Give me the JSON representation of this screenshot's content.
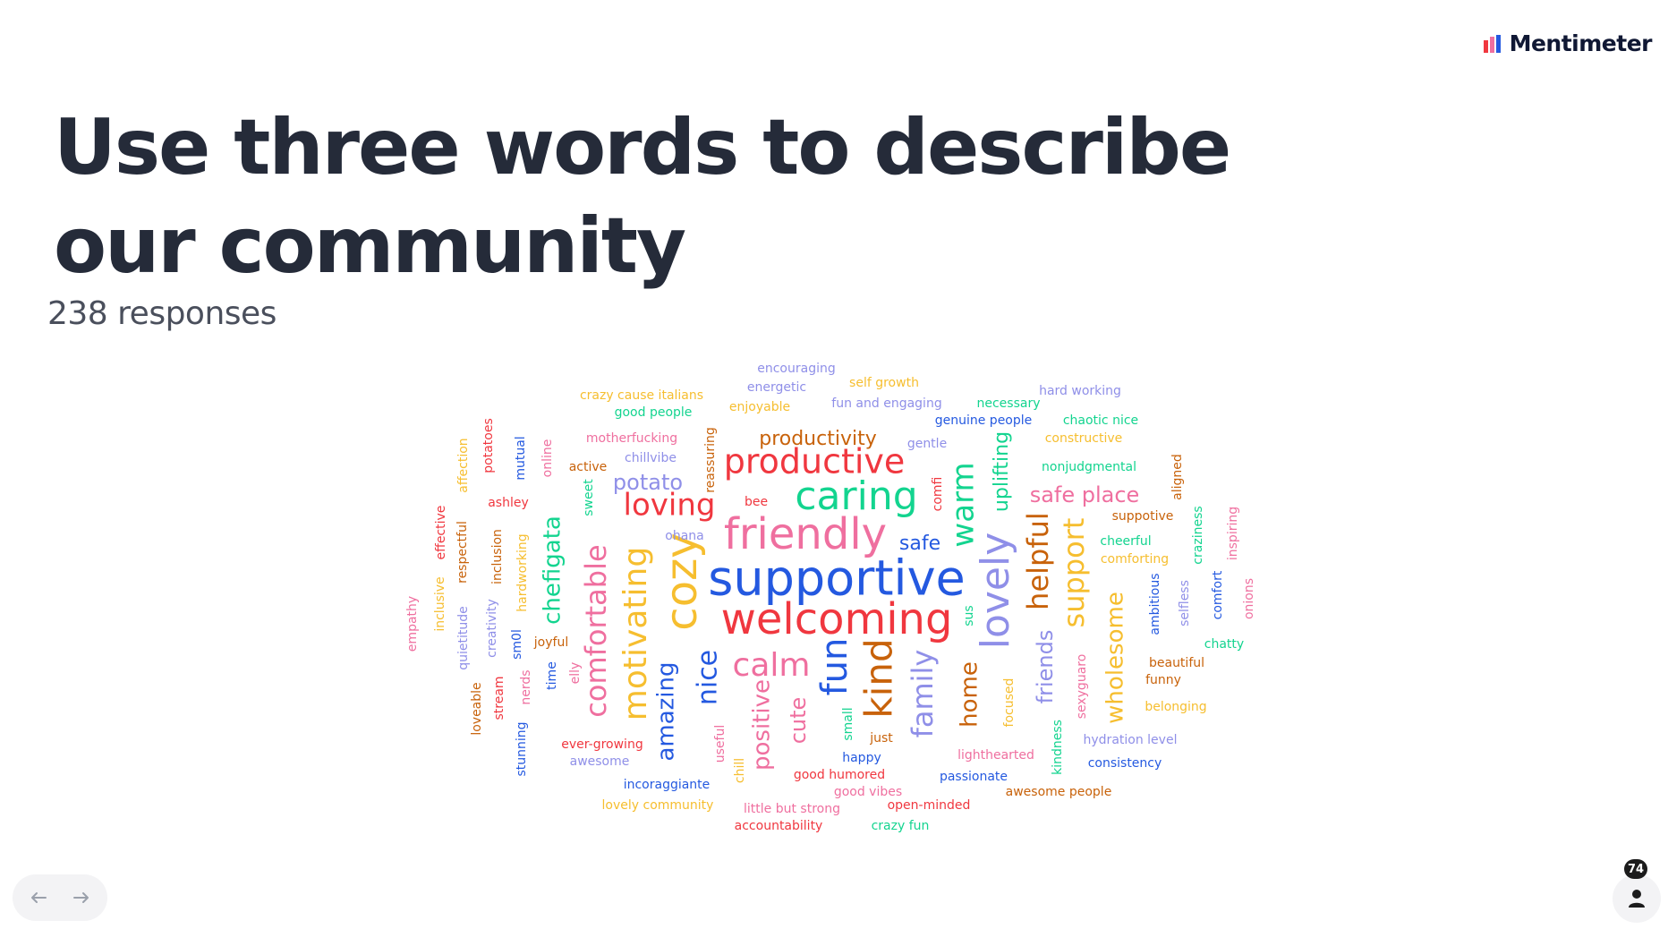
{
  "brand": {
    "name": "Mentimeter"
  },
  "question": {
    "title": "Use three words to describe our community"
  },
  "responses": {
    "count_label": "238 responses"
  },
  "colors": {
    "blue": "#2459e0",
    "red": "#f0373f",
    "pink": "#ef6f9f",
    "yellow": "#f6be2f",
    "green": "#13d48f",
    "lavender": "#8f8fe8",
    "orange": "#c8620a"
  },
  "word_cloud": {
    "words": [
      {
        "text": "supportive",
        "color": "blue",
        "weight": 1.0
      },
      {
        "text": "welcoming",
        "color": "red",
        "weight": 0.9
      },
      {
        "text": "friendly",
        "color": "pink",
        "weight": 0.85
      },
      {
        "text": "cozy",
        "color": "yellow",
        "weight": 0.83
      },
      {
        "text": "caring",
        "color": "green",
        "weight": 0.8
      },
      {
        "text": "productive",
        "color": "red",
        "weight": 0.75
      },
      {
        "text": "lovely",
        "color": "lavender",
        "weight": 0.74
      },
      {
        "text": "kind",
        "color": "orange",
        "weight": 0.73
      },
      {
        "text": "fun",
        "color": "blue",
        "weight": 0.72
      },
      {
        "text": "motivating",
        "color": "yellow",
        "weight": 0.7
      },
      {
        "text": "comfortable",
        "color": "pink",
        "weight": 0.68
      },
      {
        "text": "calm",
        "color": "pink",
        "weight": 0.68
      },
      {
        "text": "warm",
        "color": "green",
        "weight": 0.66
      },
      {
        "text": "helpful",
        "color": "orange",
        "weight": 0.65
      },
      {
        "text": "support",
        "color": "yellow",
        "weight": 0.62
      },
      {
        "text": "loving",
        "color": "red",
        "weight": 0.6
      },
      {
        "text": "family",
        "color": "lavender",
        "weight": 0.6
      },
      {
        "text": "nice",
        "color": "blue",
        "weight": 0.58
      },
      {
        "text": "wholesome",
        "color": "yellow",
        "weight": 0.52
      },
      {
        "text": "amazing",
        "color": "blue",
        "weight": 0.5
      },
      {
        "text": "chefigata",
        "color": "green",
        "weight": 0.5
      },
      {
        "text": "positive",
        "color": "pink",
        "weight": 0.48
      },
      {
        "text": "home",
        "color": "orange",
        "weight": 0.46
      },
      {
        "text": "friends",
        "color": "lavender",
        "weight": 0.44
      },
      {
        "text": "cute",
        "color": "pink",
        "weight": 0.44
      },
      {
        "text": "uplifting",
        "color": "green",
        "weight": 0.4
      },
      {
        "text": "safe place",
        "color": "pink",
        "weight": 0.4
      },
      {
        "text": "potato",
        "color": "lavender",
        "weight": 0.4
      },
      {
        "text": "productivity",
        "color": "orange",
        "weight": 0.38
      },
      {
        "text": "safe",
        "color": "blue",
        "weight": 0.38
      },
      {
        "text": "encouraging",
        "color": "lavender",
        "weight": 0.2
      },
      {
        "text": "energetic",
        "color": "lavender",
        "weight": 0.2
      },
      {
        "text": "self growth",
        "color": "yellow",
        "weight": 0.2
      },
      {
        "text": "crazy cause italians",
        "color": "yellow",
        "weight": 0.2
      },
      {
        "text": "hard working",
        "color": "lavender",
        "weight": 0.2
      },
      {
        "text": "fun and engaging",
        "color": "lavender",
        "weight": 0.2
      },
      {
        "text": "necessary",
        "color": "green",
        "weight": 0.2
      },
      {
        "text": "good people",
        "color": "green",
        "weight": 0.2
      },
      {
        "text": "enjoyable",
        "color": "yellow",
        "weight": 0.2
      },
      {
        "text": "genuine people",
        "color": "blue",
        "weight": 0.2
      },
      {
        "text": "chaotic nice",
        "color": "green",
        "weight": 0.2
      },
      {
        "text": "constructive",
        "color": "yellow",
        "weight": 0.2
      },
      {
        "text": "motherfucking",
        "color": "pink",
        "weight": 0.2
      },
      {
        "text": "gentle",
        "color": "lavender",
        "weight": 0.2
      },
      {
        "text": "chillvibe",
        "color": "lavender",
        "weight": 0.2
      },
      {
        "text": "nonjudgmental",
        "color": "green",
        "weight": 0.2
      },
      {
        "text": "active",
        "color": "orange",
        "weight": 0.2
      },
      {
        "text": "bee",
        "color": "red",
        "weight": 0.2
      },
      {
        "text": "ashley",
        "color": "red",
        "weight": 0.2
      },
      {
        "text": "suppotive",
        "color": "orange",
        "weight": 0.2
      },
      {
        "text": "ohana",
        "color": "lavender",
        "weight": 0.2
      },
      {
        "text": "cheerful",
        "color": "green",
        "weight": 0.2
      },
      {
        "text": "comforting",
        "color": "yellow",
        "weight": 0.2
      },
      {
        "text": "joyful",
        "color": "orange",
        "weight": 0.2
      },
      {
        "text": "chatty",
        "color": "green",
        "weight": 0.2
      },
      {
        "text": "beautiful",
        "color": "orange",
        "weight": 0.2
      },
      {
        "text": "funny",
        "color": "orange",
        "weight": 0.2
      },
      {
        "text": "belonging",
        "color": "yellow",
        "weight": 0.2
      },
      {
        "text": "just",
        "color": "orange",
        "weight": 0.2
      },
      {
        "text": "happy",
        "color": "blue",
        "weight": 0.2
      },
      {
        "text": "ever-growing",
        "color": "red",
        "weight": 0.2
      },
      {
        "text": "awesome",
        "color": "lavender",
        "weight": 0.2
      },
      {
        "text": "lighthearted",
        "color": "pink",
        "weight": 0.2
      },
      {
        "text": "hydration level",
        "color": "lavender",
        "weight": 0.2
      },
      {
        "text": "good humored",
        "color": "red",
        "weight": 0.2
      },
      {
        "text": "consistency",
        "color": "blue",
        "weight": 0.2
      },
      {
        "text": "passionate",
        "color": "blue",
        "weight": 0.2
      },
      {
        "text": "incoraggiante",
        "color": "blue",
        "weight": 0.2
      },
      {
        "text": "good vibes",
        "color": "pink",
        "weight": 0.2
      },
      {
        "text": "awesome people",
        "color": "orange",
        "weight": 0.2
      },
      {
        "text": "lovely community",
        "color": "yellow",
        "weight": 0.2
      },
      {
        "text": "little but strong",
        "color": "pink",
        "weight": 0.2
      },
      {
        "text": "open-minded",
        "color": "red",
        "weight": 0.2
      },
      {
        "text": "accountability",
        "color": "red",
        "weight": 0.2
      },
      {
        "text": "crazy fun",
        "color": "green",
        "weight": 0.2
      },
      {
        "text": "affection",
        "color": "yellow",
        "weight": 0.2
      },
      {
        "text": "potatoes",
        "color": "red",
        "weight": 0.2
      },
      {
        "text": "mutual",
        "color": "blue",
        "weight": 0.2
      },
      {
        "text": "online",
        "color": "pink",
        "weight": 0.2
      },
      {
        "text": "reassuring",
        "color": "orange",
        "weight": 0.2
      },
      {
        "text": "aligned",
        "color": "orange",
        "weight": 0.2
      },
      {
        "text": "sweet",
        "color": "green",
        "weight": 0.2
      },
      {
        "text": "comfi",
        "color": "red",
        "weight": 0.2
      },
      {
        "text": "craziness",
        "color": "green",
        "weight": 0.2
      },
      {
        "text": "inspiring",
        "color": "pink",
        "weight": 0.2
      },
      {
        "text": "effective",
        "color": "red",
        "weight": 0.2
      },
      {
        "text": "respectful",
        "color": "orange",
        "weight": 0.2
      },
      {
        "text": "inclusion",
        "color": "orange",
        "weight": 0.2
      },
      {
        "text": "hardworking",
        "color": "yellow",
        "weight": 0.2
      },
      {
        "text": "ambitious",
        "color": "blue",
        "weight": 0.2
      },
      {
        "text": "selfless",
        "color": "lavender",
        "weight": 0.2
      },
      {
        "text": "comfort",
        "color": "blue",
        "weight": 0.2
      },
      {
        "text": "onions",
        "color": "pink",
        "weight": 0.2
      },
      {
        "text": "empathy",
        "color": "pink",
        "weight": 0.2
      },
      {
        "text": "inclusive",
        "color": "yellow",
        "weight": 0.2
      },
      {
        "text": "quietitude",
        "color": "lavender",
        "weight": 0.2
      },
      {
        "text": "creativity",
        "color": "lavender",
        "weight": 0.2
      },
      {
        "text": "sm0l",
        "color": "blue",
        "weight": 0.2
      },
      {
        "text": "sus",
        "color": "green",
        "weight": 0.2
      },
      {
        "text": "time",
        "color": "blue",
        "weight": 0.2
      },
      {
        "text": "elly",
        "color": "pink",
        "weight": 0.2
      },
      {
        "text": "loveable",
        "color": "orange",
        "weight": 0.2
      },
      {
        "text": "stream",
        "color": "red",
        "weight": 0.2
      },
      {
        "text": "nerds",
        "color": "pink",
        "weight": 0.2
      },
      {
        "text": "stunning",
        "color": "blue",
        "weight": 0.2
      },
      {
        "text": "useful",
        "color": "pink",
        "weight": 0.2
      },
      {
        "text": "chill",
        "color": "yellow",
        "weight": 0.2
      },
      {
        "text": "small",
        "color": "green",
        "weight": 0.2
      },
      {
        "text": "focused",
        "color": "yellow",
        "weight": 0.2
      },
      {
        "text": "kindness",
        "color": "green",
        "weight": 0.2
      },
      {
        "text": "sexyguaro",
        "color": "pink",
        "weight": 0.2
      }
    ]
  },
  "navigation": {
    "prev_icon": "arrow-left-icon",
    "next_icon": "arrow-right-icon"
  },
  "audience": {
    "count": "74",
    "icon": "person-icon"
  }
}
